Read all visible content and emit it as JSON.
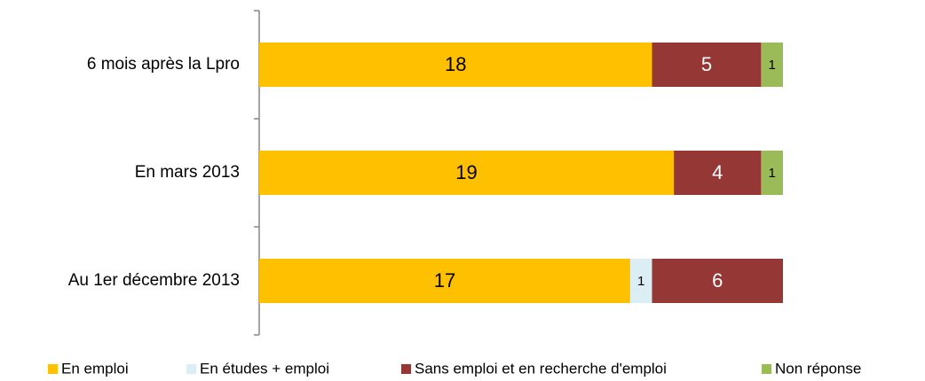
{
  "chart_data": {
    "type": "stacked-bar-horizontal",
    "categories": [
      "6 mois après la Lpro",
      "En mars 2013",
      "Au 1er décembre 2013"
    ],
    "series": [
      {
        "name": "En emploi",
        "color": "#FFC000",
        "values": [
          18,
          19,
          17
        ]
      },
      {
        "name": "En études + emploi",
        "color": "#DAEEF3",
        "values": [
          0,
          0,
          1
        ]
      },
      {
        "name": "Sans emploi et en recherche d'emploi",
        "color": "#953735",
        "values": [
          5,
          4,
          6
        ]
      },
      {
        "name": "Non réponse",
        "color": "#9BBB59",
        "values": [
          1,
          1,
          0
        ]
      }
    ],
    "xlim": [
      0,
      24
    ],
    "legend": "bottom"
  }
}
